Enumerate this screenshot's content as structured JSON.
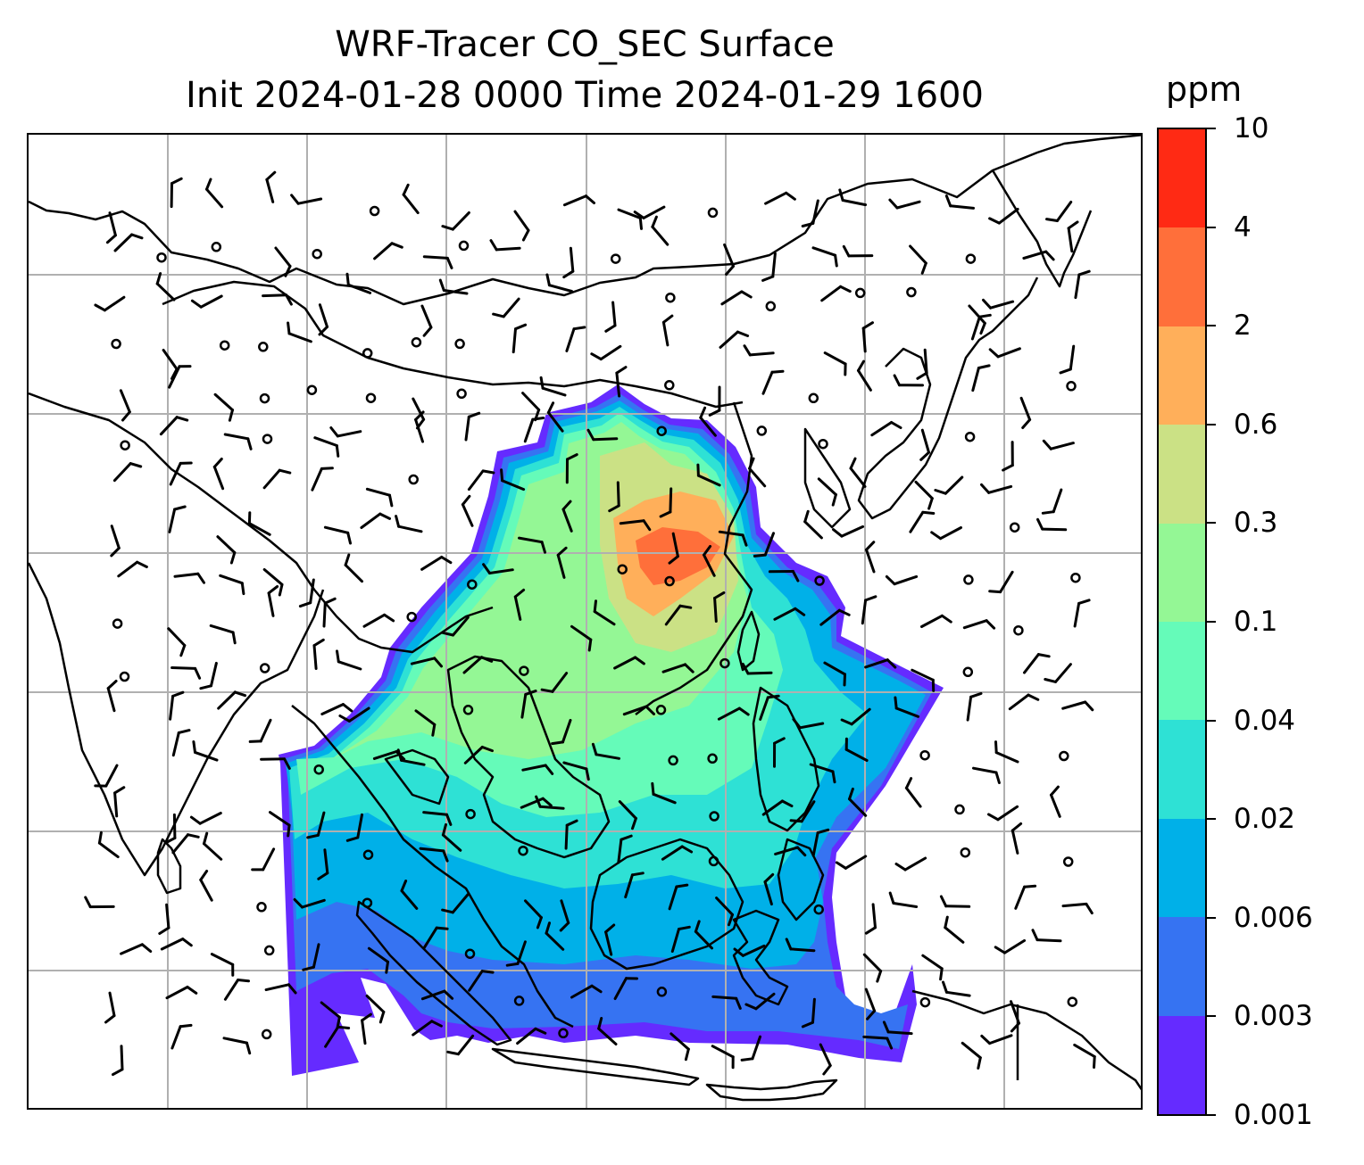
{
  "title": {
    "line1": "WRF-Tracer CO_SEC Surface",
    "line2": "Init 2024-01-28 0000 Time 2024-01-29 1600"
  },
  "colorbar": {
    "unit": "ppm",
    "tick_labels": [
      "10",
      "4",
      "2",
      "0.6",
      "0.3",
      "0.1",
      "0.04",
      "0.02",
      "0.006",
      "0.003",
      "0.001"
    ],
    "colors": [
      "#ff2a14",
      "#ff6f3a",
      "#ffaf5a",
      "#cbe185",
      "#94f795",
      "#65fbb9",
      "#2ee1d5",
      "#00b0e8",
      "#3673f2",
      "#652bff"
    ]
  },
  "map": {
    "gridlines": true,
    "gridline_color": "#b0b0b0",
    "coastline_color": "#000000",
    "wind_barb_color": "#000000",
    "background": "#ffffff"
  }
}
